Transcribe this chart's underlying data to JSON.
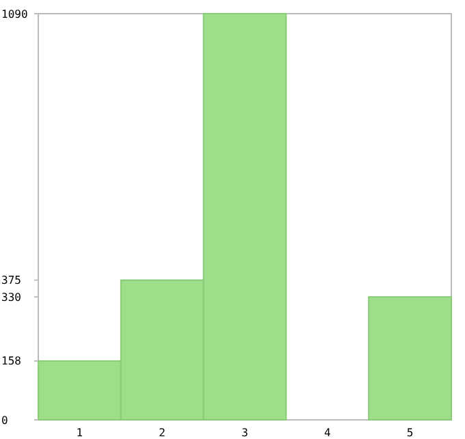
{
  "chart_data": {
    "type": "bar",
    "categories": [
      "1",
      "2",
      "3",
      "4",
      "5"
    ],
    "values": [
      158,
      375,
      1090,
      0,
      330
    ],
    "color": "#9ede8a",
    "ylim": [
      0,
      1090
    ],
    "yticks": [
      0,
      158,
      330,
      375,
      1090
    ],
    "grid": false
  }
}
